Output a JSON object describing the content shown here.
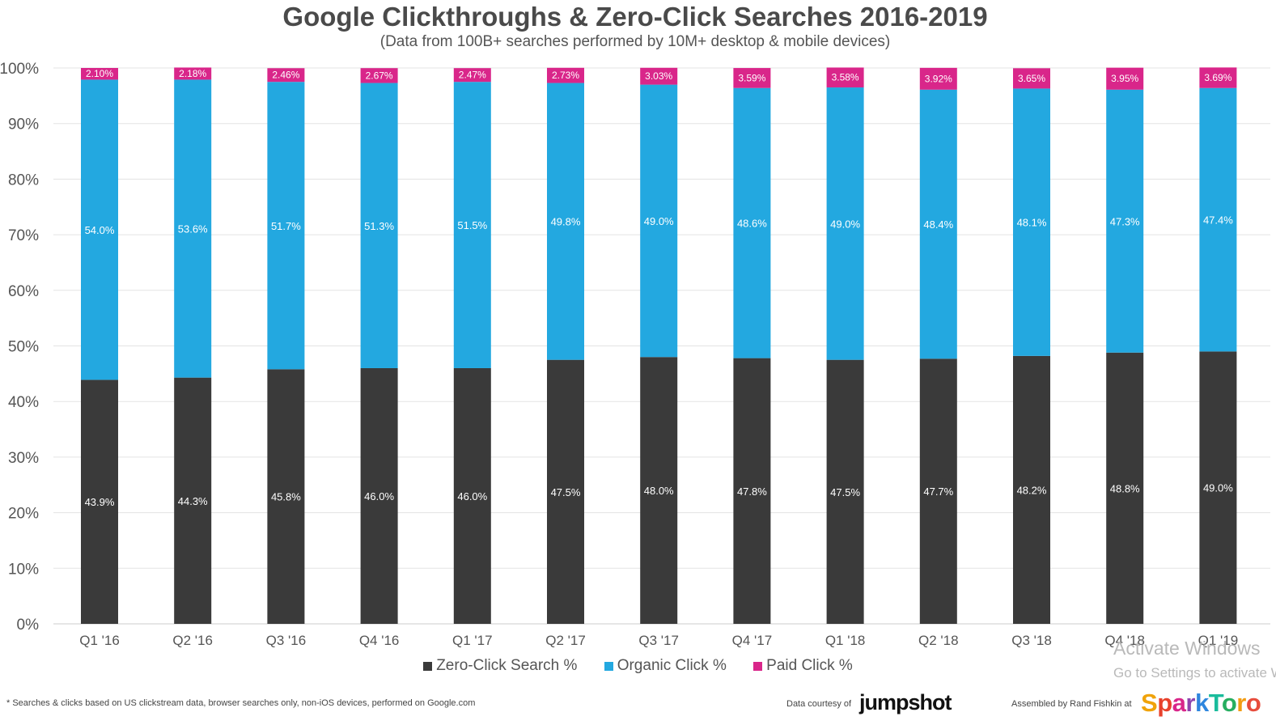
{
  "chart_data": {
    "type": "bar",
    "stacked": true,
    "title": "Google Clickthroughs & Zero-Click Searches 2016-2019",
    "subtitle": "(Data from 100B+ searches performed by 10M+ desktop & mobile devices)",
    "categories": [
      "Q1 '16",
      "Q2 '16",
      "Q3 '16",
      "Q4 '16",
      "Q1 '17",
      "Q2 '17",
      "Q3 '17",
      "Q4 '17",
      "Q1 '18",
      "Q2 '18",
      "Q3 '18",
      "Q4 '18",
      "Q1 '19"
    ],
    "series": [
      {
        "name": "Zero-Click Search %",
        "color": "#3a3a3a",
        "values": [
          43.9,
          44.3,
          45.8,
          46.0,
          46.0,
          47.5,
          48.0,
          47.8,
          47.5,
          47.7,
          48.2,
          48.8,
          49.0
        ],
        "labels": [
          "43.9%",
          "44.3%",
          "45.8%",
          "46.0%",
          "46.0%",
          "47.5%",
          "48.0%",
          "47.8%",
          "47.5%",
          "47.7%",
          "48.2%",
          "48.8%",
          "49.0%"
        ]
      },
      {
        "name": "Organic Click %",
        "color": "#23a8e0",
        "values": [
          54.0,
          53.6,
          51.7,
          51.3,
          51.5,
          49.8,
          49.0,
          48.6,
          49.0,
          48.4,
          48.1,
          47.3,
          47.4
        ],
        "labels": [
          "54.0%",
          "53.6%",
          "51.7%",
          "51.3%",
          "51.5%",
          "49.8%",
          "49.0%",
          "48.6%",
          "49.0%",
          "48.4%",
          "48.1%",
          "47.3%",
          "47.4%"
        ]
      },
      {
        "name": "Paid Click %",
        "color": "#d9268a",
        "values": [
          2.1,
          2.18,
          2.46,
          2.67,
          2.47,
          2.73,
          3.03,
          3.59,
          3.58,
          3.92,
          3.65,
          3.95,
          3.69
        ],
        "labels": [
          "2.10%",
          "2.18%",
          "2.46%",
          "2.67%",
          "2.47%",
          "2.73%",
          "3.03%",
          "3.59%",
          "3.58%",
          "3.92%",
          "3.65%",
          "3.95%",
          "3.69%"
        ]
      }
    ],
    "yticks": [
      "0%",
      "10%",
      "20%",
      "30%",
      "40%",
      "50%",
      "60%",
      "70%",
      "80%",
      "90%",
      "100%"
    ],
    "ylim": [
      0,
      100
    ],
    "grid": true,
    "legend_position": "bottom"
  },
  "colors": {
    "grid": "#e3e3e3",
    "axis": "#cccccc",
    "sparktoro": [
      "#f0a30a",
      "#e8412c",
      "#d9268a",
      "#8e44ad",
      "#2e86de",
      "#1abc9c",
      "#27ae60",
      "#f39c12",
      "#e74c3c"
    ]
  },
  "watermark": {
    "line1": "Activate Windows",
    "line2": "Go to Settings to activate Windows."
  },
  "footer": {
    "footnote": "* Searches & clicks based on US clickstream data, browser searches only, non-iOS devices, performed on Google.com",
    "credit_jumpshot": "Data courtesy of",
    "jumpshot_logo": "jumpshot",
    "credit_sparktoro": "Assembled by Rand Fishkin at",
    "sparktoro_logo": "SparkToro"
  }
}
